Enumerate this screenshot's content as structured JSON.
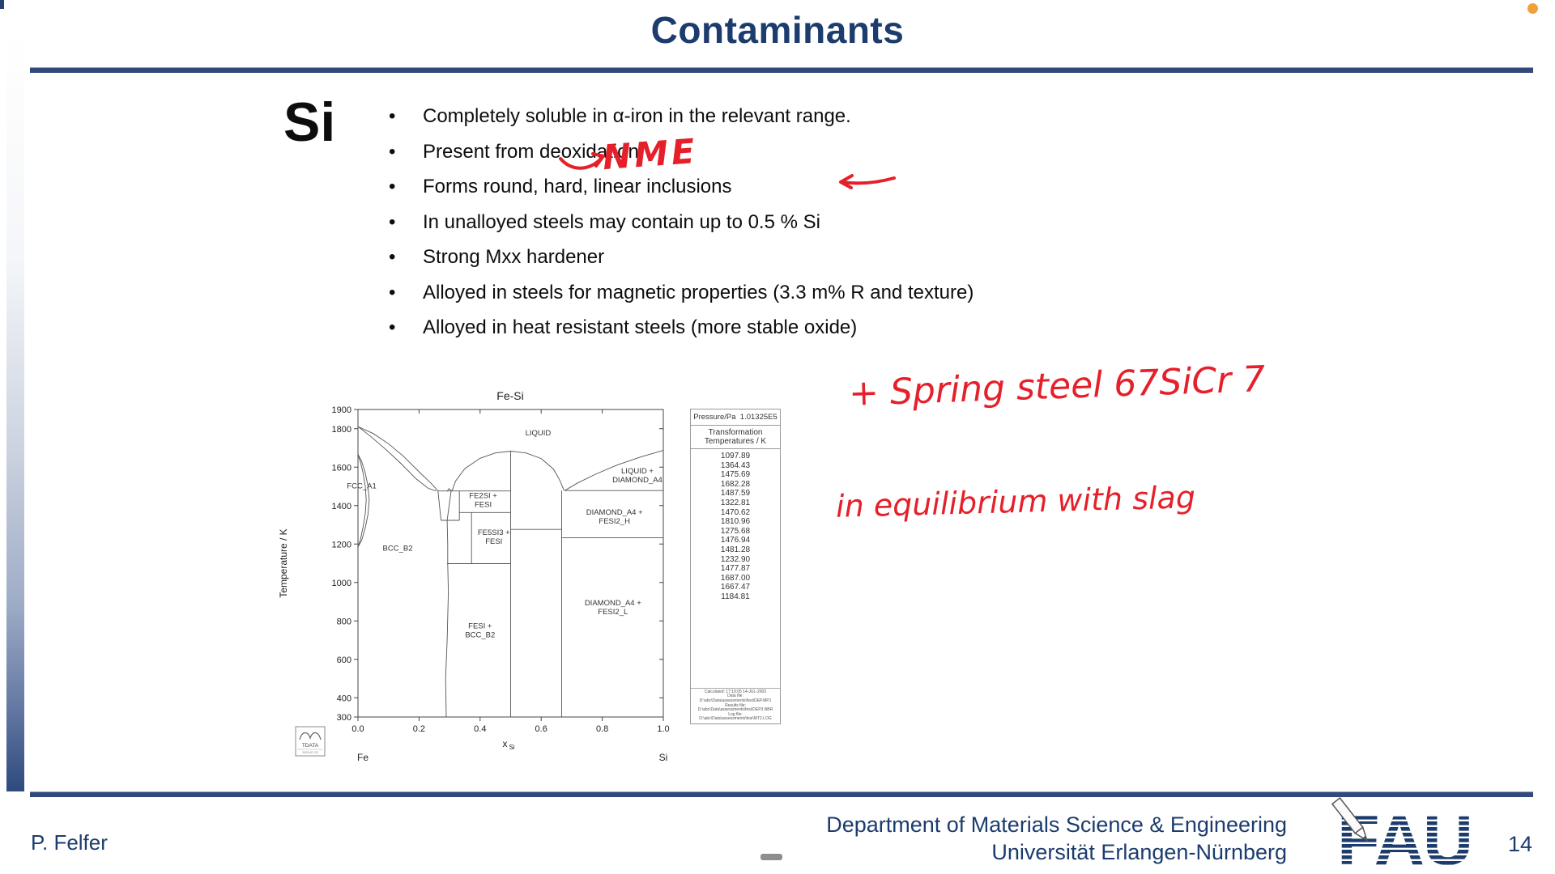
{
  "page": {
    "background": "#ffffff",
    "accent_navy": "#1c3c6e"
  },
  "slide": {
    "title": "Contaminants",
    "element_symbol": "Si",
    "bullets": [
      "Completely soluble in α-iron in the relevant range.",
      "Present from deoxidation",
      "Forms round, hard, linear inclusions",
      "In unalloyed steels may contain up to 0.5 % Si",
      "Strong Mxx hardener",
      "Alloyed in steels for magnetic properties (3.3 m% R and texture)",
      "Alloyed in heat resistant steels (more stable oxide)"
    ]
  },
  "annotations": {
    "color": "#e6202a",
    "nme_label": "NME",
    "spring_steel_note": "+ Spring steel 67SiCr 7",
    "equilibrium_note": "in equilibrium with slag"
  },
  "footer": {
    "author": "P. Felfer",
    "department": "Department of Materials Science & Engineering",
    "university": "Universität Erlangen-Nürnberg",
    "logo_text": "FAU",
    "page_number": "14"
  },
  "misc": {
    "recording_dot_color": "#f2a13a"
  },
  "chart_data": {
    "type": "line",
    "title": "Fe-Si",
    "xlabel": "x",
    "xlabel_sub": "Si",
    "ylabel": "Temperature / K",
    "xlim": [
      0.0,
      1.0
    ],
    "ylim": [
      300,
      1900
    ],
    "x_ticks": [
      "0.0",
      "0.2",
      "0.4",
      "0.6",
      "0.8",
      "1.0"
    ],
    "y_ticks": [
      1900,
      1800,
      1600,
      1400,
      1200,
      1000,
      800,
      600,
      400,
      300
    ],
    "x_end_labels": [
      "Fe",
      "Si"
    ],
    "grid": false,
    "region_labels": [
      {
        "x": 0.59,
        "t": 1765,
        "lines": [
          "LIQUID"
        ]
      },
      {
        "x": 0.012,
        "t": 1490,
        "lines": [
          "FCC_A1"
        ]
      },
      {
        "x": 0.13,
        "t": 1165,
        "lines": [
          "BCC_B2"
        ]
      },
      {
        "x": 0.41,
        "t": 1438,
        "lines": [
          "FE2SI +",
          "FESI"
        ]
      },
      {
        "x": 0.445,
        "t": 1248,
        "lines": [
          "FE5SI3 +",
          "FESI"
        ]
      },
      {
        "x": 0.4,
        "t": 762,
        "lines": [
          "FESI +",
          "BCC_B2"
        ]
      },
      {
        "x": 0.915,
        "t": 1568,
        "lines": [
          "LIQUID +",
          "DIAMOND_A4"
        ]
      },
      {
        "x": 0.84,
        "t": 1352,
        "lines": [
          "DIAMOND_A4 +",
          "FESI2_H"
        ]
      },
      {
        "x": 0.835,
        "t": 882,
        "lines": [
          "DIAMOND_A4 +",
          "FESI2_L"
        ]
      }
    ],
    "boundaries": [
      {
        "name": "liquidus-left",
        "points": [
          [
            0,
            1811
          ],
          [
            0.05,
            1775
          ],
          [
            0.1,
            1722
          ],
          [
            0.15,
            1655
          ],
          [
            0.2,
            1576
          ],
          [
            0.24,
            1515
          ],
          [
            0.262,
            1476
          ]
        ]
      },
      {
        "name": "solidus-left",
        "points": [
          [
            0,
            1811
          ],
          [
            0.04,
            1762
          ],
          [
            0.09,
            1694
          ],
          [
            0.14,
            1620
          ],
          [
            0.19,
            1540
          ],
          [
            0.23,
            1490
          ],
          [
            0.256,
            1476
          ]
        ]
      },
      {
        "name": "gamma-loop-outer",
        "points": [
          [
            0,
            1667
          ],
          [
            0.012,
            1630
          ],
          [
            0.024,
            1570
          ],
          [
            0.033,
            1500
          ],
          [
            0.037,
            1430
          ],
          [
            0.033,
            1355
          ],
          [
            0.024,
            1285
          ],
          [
            0.012,
            1218
          ],
          [
            0,
            1185
          ]
        ]
      },
      {
        "name": "gamma-loop-inner",
        "points": [
          [
            0,
            1667
          ],
          [
            0.008,
            1628
          ],
          [
            0.017,
            1568
          ],
          [
            0.024,
            1500
          ],
          [
            0.027,
            1430
          ],
          [
            0.024,
            1358
          ],
          [
            0.017,
            1290
          ],
          [
            0.008,
            1222
          ],
          [
            0,
            1185
          ]
        ]
      },
      {
        "name": "hump",
        "points": [
          [
            0.292,
            1474
          ],
          [
            0.298,
            1488
          ],
          [
            0.308,
            1476
          ]
        ]
      },
      {
        "name": "fesi-dome",
        "points": [
          [
            0.308,
            1476
          ],
          [
            0.32,
            1528
          ],
          [
            0.35,
            1592
          ],
          [
            0.4,
            1646
          ],
          [
            0.45,
            1674
          ],
          [
            0.5,
            1683
          ],
          [
            0.55,
            1674
          ],
          [
            0.6,
            1645
          ],
          [
            0.64,
            1590
          ],
          [
            0.66,
            1535
          ],
          [
            0.675,
            1478
          ]
        ]
      },
      {
        "name": "liquidus-right",
        "points": [
          [
            0.677,
            1478
          ],
          [
            0.72,
            1518
          ],
          [
            0.78,
            1565
          ],
          [
            0.85,
            1612
          ],
          [
            0.93,
            1655
          ],
          [
            1.0,
            1687
          ]
        ]
      },
      {
        "name": "eutectic-left",
        "points": [
          [
            0.262,
            1476
          ],
          [
            0.5,
            1476
          ]
        ]
      },
      {
        "name": "eutectic-right",
        "points": [
          [
            0.677,
            1478
          ],
          [
            1.0,
            1478
          ]
        ]
      },
      {
        "name": "funnel-left",
        "points": [
          [
            0.262,
            1476
          ],
          [
            0.272,
            1323
          ]
        ]
      },
      {
        "name": "funnel-right",
        "points": [
          [
            0.305,
            1476
          ],
          [
            0.292,
            1323
          ]
        ]
      },
      {
        "name": "h-1323",
        "points": [
          [
            0.272,
            1323
          ],
          [
            0.332,
            1323
          ]
        ]
      },
      {
        "name": "v-0332",
        "points": [
          [
            0.332,
            1476
          ],
          [
            0.332,
            1323
          ]
        ]
      },
      {
        "name": "h-1364",
        "points": [
          [
            0.332,
            1364
          ],
          [
            0.5,
            1364
          ]
        ]
      },
      {
        "name": "v-0372",
        "points": [
          [
            0.372,
            1364
          ],
          [
            0.372,
            1098
          ]
        ]
      },
      {
        "name": "h-1098",
        "points": [
          [
            0.292,
            1098
          ],
          [
            0.5,
            1098
          ]
        ]
      },
      {
        "name": "bcc-solvus",
        "points": [
          [
            0.292,
            1323
          ],
          [
            0.294,
            1200
          ],
          [
            0.294,
            1098
          ],
          [
            0.296,
            950
          ],
          [
            0.292,
            700
          ],
          [
            0.287,
            500
          ],
          [
            0.289,
            300
          ]
        ]
      },
      {
        "name": "fesi-line",
        "points": [
          [
            0.5,
            1683
          ],
          [
            0.5,
            300
          ]
        ]
      },
      {
        "name": "fesi2-line",
        "points": [
          [
            0.667,
            1478
          ],
          [
            0.667,
            300
          ]
        ]
      },
      {
        "name": "h-1276",
        "points": [
          [
            0.5,
            1276
          ],
          [
            0.667,
            1276
          ]
        ]
      },
      {
        "name": "h-1233",
        "points": [
          [
            0.667,
            1233
          ],
          [
            1.0,
            1233
          ]
        ]
      }
    ],
    "side_table": {
      "pressure_label": "Pressure/Pa",
      "pressure_value": "1.01325E5",
      "header": "Transformation Temperatures / K",
      "values": [
        "1097.89",
        "1364.43",
        "1475.69",
        "1682.28",
        "1487.59",
        "1322.81",
        "1470.62",
        "1810.96",
        "1275.68",
        "1476.94",
        "1481.28",
        "1232.90",
        "1477.87",
        "1687.00",
        "1667.47",
        "1184.81"
      ],
      "footnote_lines": [
        "Calculated: 17:19:05  14-JUL-2003",
        "Data file: D:\\abc\\Data\\assessments\\fesi\\DEP.MP1",
        "Results file: D:\\abc\\Data\\assessments\\fesi\\DEP3.NBR",
        "Log file: D:\\abc\\Data\\assessments\\fesi\\MT2.LOG"
      ]
    },
    "logo_box": {
      "text": "TDATA",
      "sub": "2003-07-02"
    }
  }
}
